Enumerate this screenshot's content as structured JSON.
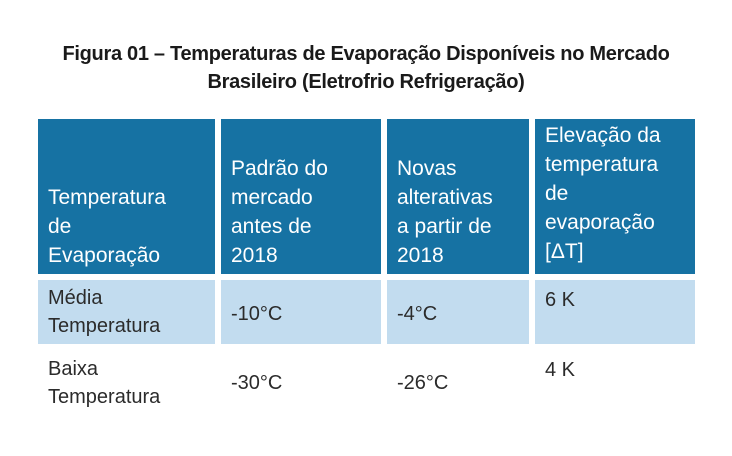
{
  "caption": {
    "line1": "Figura 01 – Temperaturas de Evaporação Disponíveis no Mercado",
    "line2": "Brasileiro (Eletrofrio Refrigeração)"
  },
  "table": {
    "headers": [
      "Temperatura\nde\nEvaporação",
      "Padrão do\nmercado\nantes de\n2018",
      "Novas\nalterativas\na partir de\n2018",
      "Elevação da\ntemperatura\nde\nevaporação\n[ΔT]"
    ],
    "rows": [
      [
        "Média\nTemperatura",
        "-10°C",
        "-4°C",
        "6 K"
      ],
      [
        "Baixa\nTemperatura",
        "-30°C",
        "-26°C",
        "4 K"
      ]
    ]
  },
  "colors": {
    "header_bg": "#1672a3",
    "row1_bg": "#c2dcef",
    "row2_bg": "#ffffff",
    "header_text": "#ffffff",
    "body_text": "#2b2b2b"
  }
}
